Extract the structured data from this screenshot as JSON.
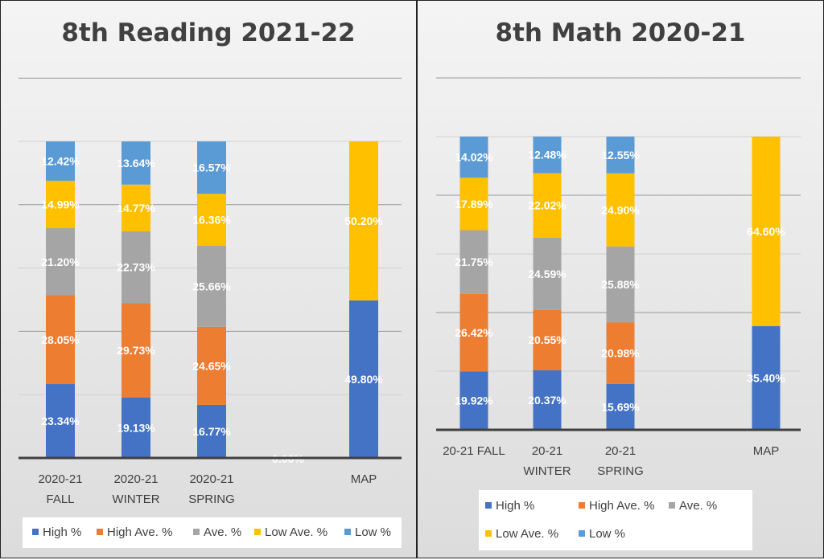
{
  "colors": {
    "high": "#4472C4",
    "high_ave": "#ED7D31",
    "ave": "#A5A5A5",
    "low_ave": "#FFC000",
    "low": "#5B9BD5"
  },
  "legend_labels": {
    "high": "High %",
    "high_ave": "High Ave. %",
    "ave": "Ave. %",
    "low_ave": "Low Ave. %",
    "low": "Low %"
  },
  "chart_data": [
    {
      "type": "bar",
      "stacked": true,
      "title": "8th Reading 2021-22",
      "categories": [
        [
          "2020-21",
          "FALL"
        ],
        [
          "2020-21",
          "WINTER"
        ],
        [
          "2020-21",
          "SPRING"
        ],
        [
          ""
        ],
        [
          "MAP"
        ]
      ],
      "series": [
        {
          "name": "High %",
          "key": "high",
          "values": [
            23.34,
            19.13,
            16.77,
            0.0,
            49.8
          ]
        },
        {
          "name": "High Ave. %",
          "key": "high_ave",
          "values": [
            28.05,
            29.73,
            24.65,
            null,
            null
          ]
        },
        {
          "name": "Ave. %",
          "key": "ave",
          "values": [
            21.2,
            22.73,
            25.66,
            null,
            null
          ]
        },
        {
          "name": "Low Ave. %",
          "key": "low_ave",
          "values": [
            14.99,
            14.77,
            16.36,
            null,
            50.2
          ]
        },
        {
          "name": "Low %",
          "key": "low",
          "values": [
            12.42,
            13.64,
            16.57,
            null,
            null
          ]
        }
      ],
      "ylim": [
        0,
        100
      ],
      "grid": true,
      "legend_position": "bottom"
    },
    {
      "type": "bar",
      "stacked": true,
      "title": "8th Math 2020-21",
      "categories": [
        [
          "20-21 FALL"
        ],
        [
          "20-21",
          "WINTER"
        ],
        [
          "20-21",
          "SPRING"
        ],
        [
          ""
        ],
        [
          "MAP"
        ]
      ],
      "series": [
        {
          "name": "High %",
          "key": "high",
          "values": [
            19.92,
            20.37,
            15.69,
            null,
            35.4
          ]
        },
        {
          "name": "High Ave. %",
          "key": "high_ave",
          "values": [
            26.42,
            20.55,
            20.98,
            null,
            null
          ]
        },
        {
          "name": "Ave. %",
          "key": "ave",
          "values": [
            21.75,
            24.59,
            25.88,
            null,
            null
          ]
        },
        {
          "name": "Low Ave. %",
          "key": "low_ave",
          "values": [
            17.89,
            22.02,
            24.9,
            null,
            64.6
          ]
        },
        {
          "name": "Low %",
          "key": "low",
          "values": [
            14.02,
            12.48,
            12.55,
            null,
            null
          ]
        }
      ],
      "ylim": [
        0,
        100
      ],
      "grid": true,
      "legend_position": "bottom"
    }
  ]
}
